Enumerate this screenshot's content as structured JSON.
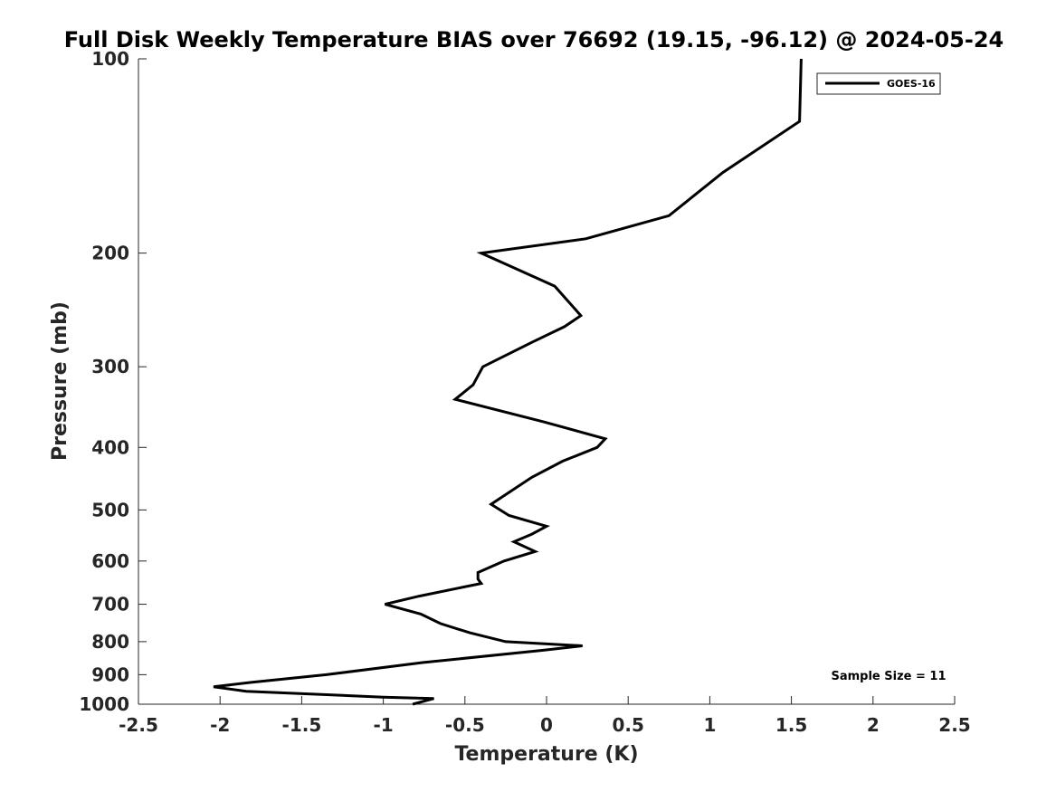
{
  "chart_data": {
    "type": "line",
    "title": "Full Disk Weekly Temperature BIAS over 76692 (19.15, -96.12) @ 2024-05-24",
    "xlabel": "Temperature (K)",
    "ylabel": "Pressure (mb)",
    "xlim": [
      -2.5,
      2.5
    ],
    "ylim": [
      100,
      1000
    ],
    "yscale": "log",
    "y_reversed": true,
    "grid": false,
    "xticks": [
      -2.5,
      -2,
      -1.5,
      -1,
      -0.5,
      0,
      0.5,
      1,
      1.5,
      2,
      2.5
    ],
    "xtick_labels": [
      "-2.5",
      "-2",
      "-1.5",
      "-1",
      "-0.5",
      "0",
      "0.5",
      "1",
      "1.5",
      "2",
      "2.5"
    ],
    "yticks": [
      100,
      200,
      300,
      400,
      500,
      600,
      700,
      800,
      900,
      1000
    ],
    "ytick_labels": [
      "100",
      "200",
      "300",
      "400",
      "500",
      "600",
      "700",
      "800",
      "900",
      "1000"
    ],
    "legend": {
      "location": "top-right",
      "entries": [
        "GOES-16"
      ]
    },
    "annotation": "Sample Size = 11",
    "series": [
      {
        "name": "GOES-16",
        "color": "#000000",
        "points": [
          {
            "x": 1.56,
            "y": 100
          },
          {
            "x": 1.55,
            "y": 125
          },
          {
            "x": 1.08,
            "y": 150
          },
          {
            "x": 0.75,
            "y": 175
          },
          {
            "x": 0.24,
            "y": 190
          },
          {
            "x": -0.4,
            "y": 200
          },
          {
            "x": 0.05,
            "y": 225
          },
          {
            "x": 0.21,
            "y": 250
          },
          {
            "x": 0.11,
            "y": 260
          },
          {
            "x": -0.09,
            "y": 275
          },
          {
            "x": -0.39,
            "y": 300
          },
          {
            "x": -0.45,
            "y": 320
          },
          {
            "x": -0.56,
            "y": 337
          },
          {
            "x": -0.02,
            "y": 365
          },
          {
            "x": 0.36,
            "y": 388
          },
          {
            "x": 0.31,
            "y": 400
          },
          {
            "x": 0.1,
            "y": 420
          },
          {
            "x": -0.09,
            "y": 445
          },
          {
            "x": -0.34,
            "y": 490
          },
          {
            "x": -0.23,
            "y": 510
          },
          {
            "x": 0.0,
            "y": 530
          },
          {
            "x": -0.09,
            "y": 545
          },
          {
            "x": -0.2,
            "y": 560
          },
          {
            "x": -0.07,
            "y": 580
          },
          {
            "x": -0.26,
            "y": 600
          },
          {
            "x": -0.42,
            "y": 625
          },
          {
            "x": -0.42,
            "y": 640
          },
          {
            "x": -0.4,
            "y": 650
          },
          {
            "x": -0.78,
            "y": 680
          },
          {
            "x": -0.99,
            "y": 700
          },
          {
            "x": -0.77,
            "y": 725
          },
          {
            "x": -0.65,
            "y": 750
          },
          {
            "x": -0.47,
            "y": 775
          },
          {
            "x": -0.25,
            "y": 800
          },
          {
            "x": 0.22,
            "y": 812
          },
          {
            "x": -0.02,
            "y": 825
          },
          {
            "x": -0.76,
            "y": 862
          },
          {
            "x": -1.35,
            "y": 900
          },
          {
            "x": -1.81,
            "y": 925
          },
          {
            "x": -2.04,
            "y": 940
          },
          {
            "x": -1.84,
            "y": 955
          },
          {
            "x": -1.0,
            "y": 975
          },
          {
            "x": -0.69,
            "y": 980
          },
          {
            "x": -0.82,
            "y": 1000
          }
        ]
      }
    ]
  }
}
